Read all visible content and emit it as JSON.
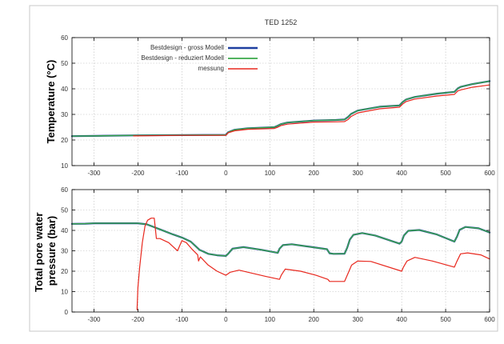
{
  "chart_data": [
    {
      "type": "line",
      "title": "TED 1252",
      "ylabel": "Temperature (°C)",
      "xlabel": "",
      "xlim": [
        -350,
        600
      ],
      "ylim": [
        10,
        60
      ],
      "x_ticks": [
        -300,
        -200,
        -100,
        0,
        100,
        200,
        300,
        400,
        500,
        600
      ],
      "y_ticks": [
        10,
        20,
        30,
        40,
        50,
        60
      ],
      "grid": true,
      "legend_position": "top-left",
      "series": [
        {
          "name": "Bestdesign - gross Modell",
          "color": "#1f3fa0",
          "width": 2.2,
          "x": [
            -350,
            -200,
            0,
            5,
            20,
            50,
            110,
            118,
            125,
            140,
            200,
            250,
            270,
            278,
            285,
            300,
            350,
            395,
            402,
            410,
            430,
            480,
            520,
            528,
            535,
            560,
            600
          ],
          "y": [
            21.5,
            21.8,
            22,
            23,
            24,
            24.6,
            25,
            25.6,
            26.2,
            26.8,
            27.6,
            27.8,
            28,
            29,
            30.2,
            31.5,
            33,
            33.5,
            34.8,
            35.8,
            36.8,
            38.1,
            38.8,
            40.2,
            40.8,
            41.8,
            43
          ]
        },
        {
          "name": "Bestdesign - reduziert Modell",
          "color": "#3aa84a",
          "width": 1.4,
          "x": [
            -350,
            -200,
            0,
            5,
            20,
            50,
            110,
            118,
            125,
            140,
            200,
            250,
            270,
            278,
            285,
            300,
            350,
            395,
            402,
            410,
            430,
            480,
            520,
            528,
            535,
            560,
            600
          ],
          "y": [
            21.5,
            21.8,
            22,
            23,
            24,
            24.6,
            25,
            25.6,
            26.2,
            26.8,
            27.6,
            27.8,
            28,
            29,
            30.2,
            31.5,
            33,
            33.5,
            34.8,
            35.8,
            36.8,
            38.1,
            38.8,
            40.2,
            40.8,
            41.8,
            43
          ]
        },
        {
          "name": "messung",
          "color": "#e8281e",
          "width": 1.2,
          "x": [
            -210,
            -100,
            0,
            5,
            20,
            50,
            110,
            118,
            125,
            140,
            200,
            250,
            270,
            278,
            285,
            300,
            350,
            395,
            402,
            410,
            430,
            480,
            520,
            528,
            535,
            560,
            600
          ],
          "y": [
            21.6,
            21.8,
            21.8,
            22.8,
            23.6,
            24.2,
            24.5,
            25,
            25.6,
            26.2,
            27,
            27.1,
            27.2,
            28,
            29.2,
            30.6,
            32.2,
            32.8,
            34,
            35,
            36,
            37.2,
            37.8,
            39.2,
            39.6,
            40.6,
            41.5
          ]
        }
      ]
    },
    {
      "type": "line",
      "title": "",
      "ylabel": "Total pore water pressure (bar)",
      "ylabel_lines": [
        "Total pore water",
        "pressure (bar)"
      ],
      "xlabel": "",
      "xlim": [
        -350,
        600
      ],
      "ylim": [
        0,
        60
      ],
      "x_ticks": [
        -300,
        -200,
        -100,
        0,
        100,
        200,
        300,
        400,
        500,
        600
      ],
      "y_ticks": [
        0,
        10,
        20,
        30,
        40,
        50,
        60
      ],
      "grid": true,
      "series": [
        {
          "name": "Bestdesign - gross Modell",
          "color": "#1f3fa0",
          "width": 2.2,
          "x": [
            -350,
            -320,
            -300,
            -200,
            -180,
            -150,
            -120,
            -100,
            -80,
            -60,
            -40,
            -20,
            0,
            5,
            15,
            40,
            80,
            118,
            122,
            130,
            150,
            190,
            230,
            236,
            245,
            270,
            276,
            282,
            290,
            310,
            340,
            395,
            400,
            405,
            415,
            440,
            480,
            520,
            526,
            532,
            545,
            575,
            600
          ],
          "y": [
            43.2,
            43.3,
            43.5,
            43.5,
            43,
            40.5,
            38,
            36.5,
            34.5,
            30.5,
            28.5,
            27.8,
            27.5,
            28.5,
            31,
            31.8,
            30.5,
            29,
            31,
            32.8,
            33.2,
            32,
            30.8,
            28.8,
            28.5,
            28.6,
            31.5,
            35.5,
            37.8,
            38.7,
            37.5,
            33.5,
            34.5,
            37.5,
            39.8,
            40.2,
            38,
            34.5,
            37,
            40.3,
            41.7,
            41,
            39
          ]
        },
        {
          "name": "Bestdesign - reduziert Modell",
          "color": "#3aa84a",
          "width": 1.4,
          "x": [
            -350,
            -320,
            -300,
            -200,
            -180,
            -150,
            -120,
            -100,
            -80,
            -60,
            -40,
            -20,
            0,
            5,
            15,
            40,
            80,
            118,
            122,
            130,
            150,
            190,
            230,
            236,
            245,
            270,
            276,
            282,
            290,
            310,
            340,
            395,
            400,
            405,
            415,
            440,
            480,
            520,
            526,
            532,
            545,
            575,
            600
          ],
          "y": [
            43.2,
            43.3,
            43.5,
            43.5,
            43,
            40.5,
            38,
            36.5,
            34.5,
            30.5,
            28.5,
            27.8,
            27.5,
            28.5,
            31,
            31.8,
            30.5,
            29,
            31,
            32.8,
            33.2,
            32,
            30.8,
            28.8,
            28.5,
            28.6,
            31.5,
            35.5,
            37.8,
            38.7,
            37.5,
            33.5,
            34.5,
            37.5,
            39.8,
            40.2,
            38,
            34.5,
            37,
            40.3,
            41.7,
            41,
            39
          ]
        },
        {
          "name": "messung",
          "color": "#e8281e",
          "width": 1.2,
          "x": [
            -202,
            -200,
            -196,
            -190,
            -184,
            -178,
            -170,
            -163,
            -158,
            -150,
            -130,
            -110,
            -100,
            -90,
            -78,
            -64,
            -62,
            -58,
            -40,
            -20,
            0,
            10,
            30,
            60,
            90,
            122,
            126,
            135,
            170,
            205,
            232,
            236,
            250,
            270,
            278,
            286,
            300,
            330,
            400,
            404,
            412,
            430,
            470,
            520,
            526,
            534,
            550,
            580,
            600
          ],
          "y": [
            1,
            12,
            22,
            34,
            42,
            45,
            46,
            46,
            36,
            36,
            34,
            30,
            35,
            34,
            31,
            28,
            25,
            27,
            23,
            20,
            18,
            19.5,
            20.5,
            19,
            17.5,
            16,
            18,
            21,
            20,
            18,
            16,
            15,
            15,
            15,
            19,
            23,
            25,
            24.8,
            20,
            22,
            25,
            26.8,
            25,
            22,
            25,
            28.5,
            29,
            28,
            26
          ]
        }
      ]
    }
  ]
}
